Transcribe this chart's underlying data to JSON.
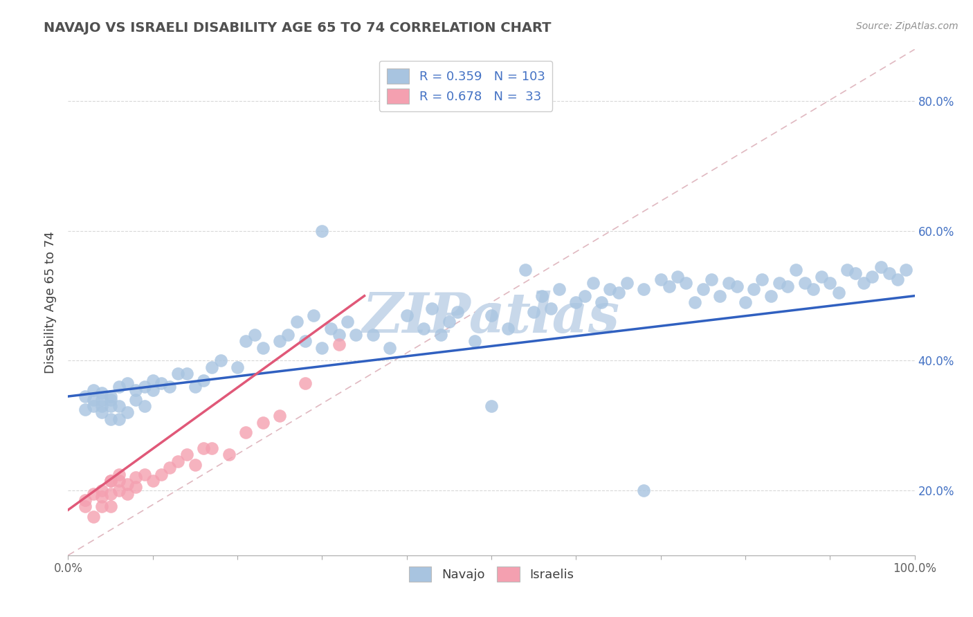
{
  "title": "NAVAJO VS ISRAELI DISABILITY AGE 65 TO 74 CORRELATION CHART",
  "source_text": "Source: ZipAtlas.com",
  "ylabel": "Disability Age 65 to 74",
  "xlim": [
    0.0,
    1.0
  ],
  "ylim": [
    0.1,
    0.88
  ],
  "xticks": [
    0.0,
    0.1,
    0.2,
    0.3,
    0.4,
    0.5,
    0.6,
    0.7,
    0.8,
    0.9,
    1.0
  ],
  "xtick_labels_major": [
    "0.0%",
    "",
    "",
    "",
    "",
    "",
    "",
    "",
    "",
    "",
    "100.0%"
  ],
  "yticks": [
    0.2,
    0.4,
    0.6,
    0.8
  ],
  "ytick_labels": [
    "20.0%",
    "40.0%",
    "60.0%",
    "80.0%"
  ],
  "navajo_R": 0.359,
  "navajo_N": 103,
  "israeli_R": 0.678,
  "israeli_N": 33,
  "navajo_color": "#a8c4e0",
  "israeli_color": "#f4a0b0",
  "navajo_line_color": "#3060c0",
  "israeli_line_color": "#e05878",
  "ref_line_color": "#e0b8c0",
  "background_color": "#ffffff",
  "grid_color": "#d8d8d8",
  "title_color": "#505050",
  "watermark_color": "#c8d8ea",
  "navajo_x": [
    0.02,
    0.02,
    0.03,
    0.03,
    0.03,
    0.04,
    0.04,
    0.04,
    0.04,
    0.05,
    0.05,
    0.05,
    0.05,
    0.06,
    0.06,
    0.06,
    0.07,
    0.07,
    0.08,
    0.08,
    0.09,
    0.09,
    0.1,
    0.1,
    0.11,
    0.12,
    0.13,
    0.14,
    0.15,
    0.16,
    0.17,
    0.18,
    0.2,
    0.21,
    0.22,
    0.23,
    0.25,
    0.26,
    0.27,
    0.28,
    0.29,
    0.3,
    0.31,
    0.32,
    0.33,
    0.34,
    0.36,
    0.38,
    0.4,
    0.42,
    0.43,
    0.44,
    0.45,
    0.46,
    0.48,
    0.5,
    0.52,
    0.54,
    0.55,
    0.56,
    0.57,
    0.58,
    0.6,
    0.61,
    0.62,
    0.63,
    0.64,
    0.65,
    0.66,
    0.68,
    0.7,
    0.71,
    0.72,
    0.73,
    0.74,
    0.75,
    0.76,
    0.77,
    0.78,
    0.79,
    0.8,
    0.81,
    0.82,
    0.83,
    0.84,
    0.85,
    0.86,
    0.87,
    0.88,
    0.89,
    0.9,
    0.91,
    0.92,
    0.93,
    0.94,
    0.95,
    0.96,
    0.97,
    0.98,
    0.99,
    0.3,
    0.5,
    0.68
  ],
  "navajo_y": [
    0.345,
    0.325,
    0.34,
    0.33,
    0.355,
    0.33,
    0.35,
    0.32,
    0.34,
    0.31,
    0.34,
    0.33,
    0.345,
    0.31,
    0.36,
    0.33,
    0.365,
    0.32,
    0.34,
    0.355,
    0.36,
    0.33,
    0.355,
    0.37,
    0.365,
    0.36,
    0.38,
    0.38,
    0.36,
    0.37,
    0.39,
    0.4,
    0.39,
    0.43,
    0.44,
    0.42,
    0.43,
    0.44,
    0.46,
    0.43,
    0.47,
    0.42,
    0.45,
    0.44,
    0.46,
    0.44,
    0.44,
    0.42,
    0.47,
    0.45,
    0.48,
    0.44,
    0.46,
    0.475,
    0.43,
    0.47,
    0.45,
    0.54,
    0.475,
    0.5,
    0.48,
    0.51,
    0.49,
    0.5,
    0.52,
    0.49,
    0.51,
    0.505,
    0.52,
    0.51,
    0.525,
    0.515,
    0.53,
    0.52,
    0.49,
    0.51,
    0.525,
    0.5,
    0.52,
    0.515,
    0.49,
    0.51,
    0.525,
    0.5,
    0.52,
    0.515,
    0.54,
    0.52,
    0.51,
    0.53,
    0.52,
    0.505,
    0.54,
    0.535,
    0.52,
    0.53,
    0.545,
    0.535,
    0.525,
    0.54,
    0.6,
    0.33,
    0.2
  ],
  "israeli_x": [
    0.02,
    0.02,
    0.03,
    0.03,
    0.04,
    0.04,
    0.04,
    0.05,
    0.05,
    0.05,
    0.05,
    0.06,
    0.06,
    0.06,
    0.07,
    0.07,
    0.08,
    0.08,
    0.09,
    0.1,
    0.11,
    0.12,
    0.13,
    0.14,
    0.15,
    0.16,
    0.17,
    0.19,
    0.21,
    0.23,
    0.25,
    0.28,
    0.32
  ],
  "israeli_y": [
    0.175,
    0.185,
    0.16,
    0.195,
    0.175,
    0.2,
    0.19,
    0.215,
    0.195,
    0.175,
    0.215,
    0.2,
    0.225,
    0.215,
    0.21,
    0.195,
    0.22,
    0.205,
    0.225,
    0.215,
    0.225,
    0.235,
    0.245,
    0.255,
    0.24,
    0.265,
    0.265,
    0.255,
    0.29,
    0.305,
    0.315,
    0.365,
    0.425
  ],
  "navajo_line_x": [
    0.0,
    1.0
  ],
  "navajo_line_y": [
    0.345,
    0.5
  ],
  "israeli_line_x": [
    0.0,
    0.35
  ],
  "israeli_line_y": [
    0.17,
    0.5
  ],
  "ref_line_x": [
    0.0,
    1.0
  ],
  "ref_line_y": [
    0.1,
    0.88
  ]
}
